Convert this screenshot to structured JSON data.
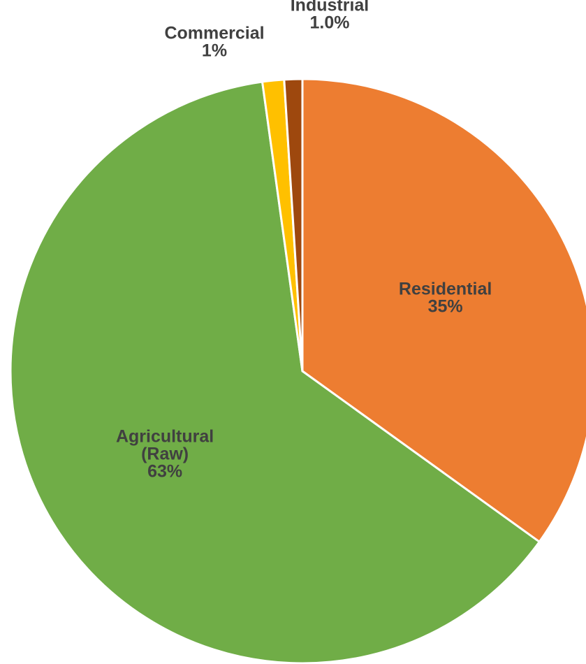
{
  "chart_data": {
    "type": "pie",
    "start_angle_deg": 0,
    "direction": "clockwise",
    "slices": [
      {
        "name": "Residential",
        "label_lines": [
          "Residential"
        ],
        "percent_label": "35%",
        "value": 35,
        "color": "#ED7D31"
      },
      {
        "name": "Agricultural (Raw)",
        "label_lines": [
          "Agricultural",
          "(Raw)"
        ],
        "percent_label": "63%",
        "value": 63,
        "color": "#70AD47"
      },
      {
        "name": "Commercial",
        "label_lines": [
          "Commercial"
        ],
        "percent_label": "1%",
        "value": 1.2,
        "color": "#FFC000"
      },
      {
        "name": "Industrial",
        "label_lines": [
          "Industrial"
        ],
        "percent_label": "1.0%",
        "value": 1.0,
        "color": "#9E480E"
      }
    ],
    "legend": "none"
  }
}
